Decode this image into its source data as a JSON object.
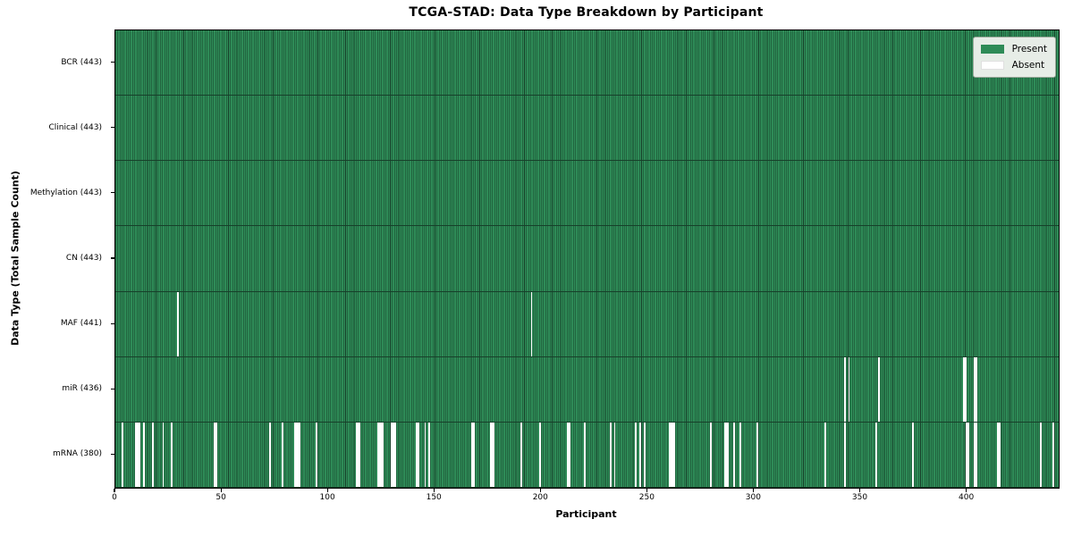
{
  "title": "TCGA-STAD: Data Type Breakdown by Participant",
  "xlabel": "Participant",
  "ylabel": "Data Type (Total Sample Count)",
  "legend": {
    "present_label": "Present",
    "absent_label": "Absent",
    "position": "upper right"
  },
  "colors": {
    "present": "#2E8B57",
    "absent": "#FFFFFF",
    "edge": "#17402A",
    "legend_bg": "#E7EDE7"
  },
  "chart_data": {
    "type": "heatmap",
    "title": "TCGA-STAD: Data Type Breakdown by Participant",
    "xlabel": "Participant",
    "ylabel": "Data Type (Total Sample Count)",
    "n_participants": 443,
    "x_ticks": [
      0,
      50,
      100,
      150,
      200,
      250,
      300,
      350,
      400
    ],
    "legend_entries": [
      "Present",
      "Absent"
    ],
    "legend_position": "upper right",
    "grid": false,
    "rows": [
      {
        "name": "BCR",
        "label": "BCR (443)",
        "present_count": 443,
        "absent_participants": []
      },
      {
        "name": "Clinical",
        "label": "Clinical (443)",
        "present_count": 443,
        "absent_participants": []
      },
      {
        "name": "Methylation",
        "label": "Methylation (443)",
        "present_count": 443,
        "absent_participants": []
      },
      {
        "name": "CN",
        "label": "CN (443)",
        "present_count": 443,
        "absent_participants": []
      },
      {
        "name": "MAF",
        "label": "MAF (441)",
        "present_count": 441,
        "absent_participants": [
          29,
          195
        ]
      },
      {
        "name": "miR",
        "label": "miR (436)",
        "present_count": 436,
        "absent_participants": [
          342,
          344,
          358,
          398,
          399,
          403,
          404
        ]
      },
      {
        "name": "mRNA",
        "label": "mRNA (380)",
        "present_count": 380,
        "absent_participants": [
          3,
          9,
          10,
          11,
          13,
          17,
          22,
          26,
          46,
          47,
          72,
          78,
          84,
          85,
          86,
          94,
          113,
          114,
          123,
          124,
          125,
          129,
          130,
          131,
          141,
          142,
          145,
          147,
          167,
          168,
          176,
          177,
          190,
          199,
          212,
          213,
          220,
          232,
          234,
          244,
          246,
          248,
          260,
          261,
          262,
          279,
          286,
          287,
          290,
          293,
          301,
          333,
          342,
          357,
          374,
          399,
          400,
          403,
          404,
          414,
          415,
          434,
          440
        ]
      }
    ]
  }
}
